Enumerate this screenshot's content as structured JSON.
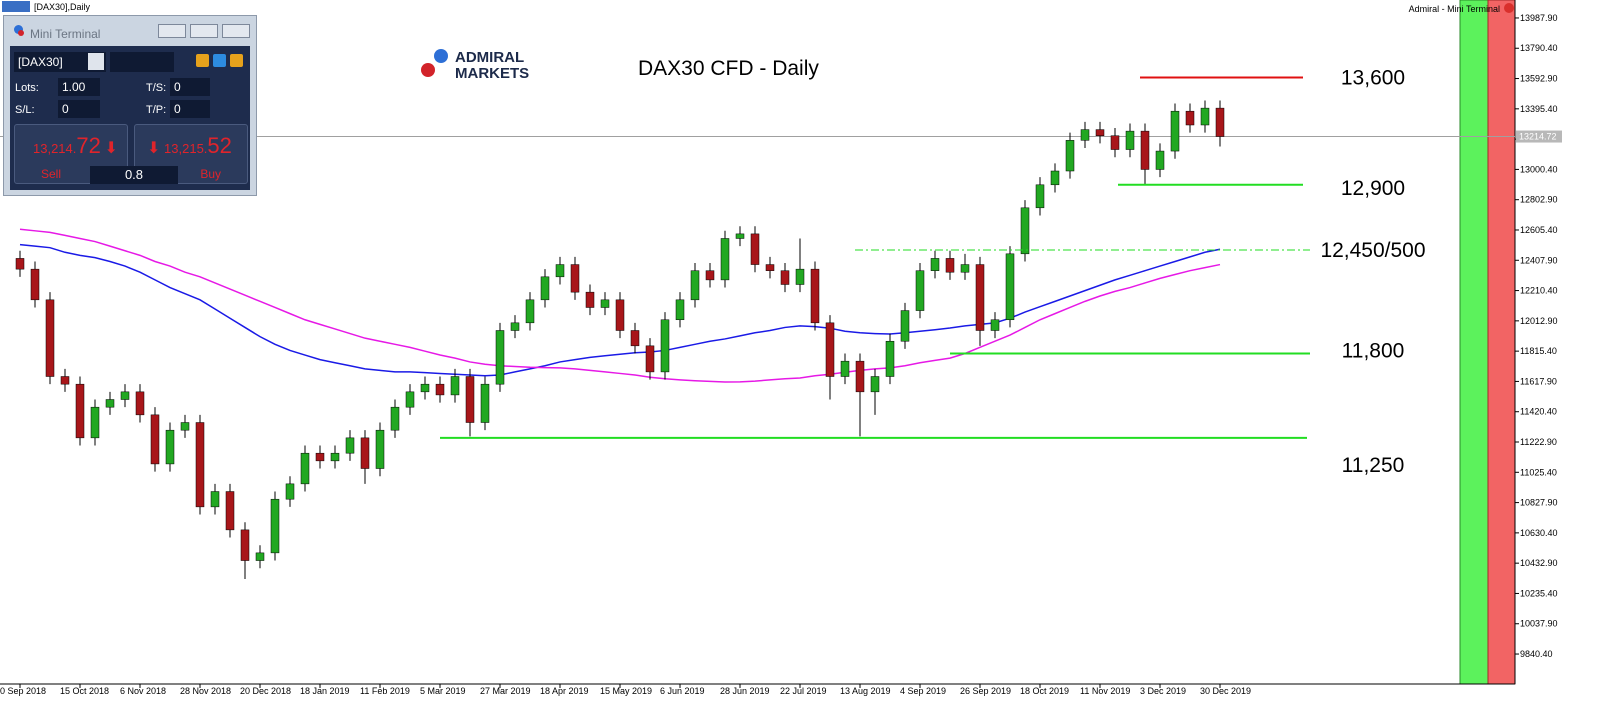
{
  "window_title": "[DAX30],Daily",
  "chart_data": {
    "type": "candlestick",
    "title": "DAX30 CFD - Daily",
    "logo": [
      "ADMIRAL",
      "MARKETS"
    ],
    "indicator_panel": "Admiral - Mini Terminal",
    "categories": [
      "0 Sep 2018",
      null,
      null,
      null,
      "15 Oct 2018",
      null,
      null,
      null,
      "6 Nov 2018",
      null,
      null,
      null,
      "28 Nov 2018",
      null,
      null,
      null,
      "20 Dec 2018",
      null,
      null,
      null,
      "18 Jan 2019",
      null,
      null,
      null,
      "11 Feb 2019",
      null,
      null,
      null,
      "5 Mar 2019",
      null,
      null,
      null,
      "27 Mar 2019",
      null,
      null,
      null,
      "18 Apr 2019",
      null,
      null,
      null,
      "15 May 2019",
      null,
      null,
      null,
      "6 Jun 2019",
      null,
      null,
      null,
      "28 Jun 2019",
      null,
      null,
      null,
      "22 Jul 2019",
      null,
      null,
      null,
      "13 Aug 2019",
      null,
      null,
      null,
      "4 Sep 2019",
      null,
      null,
      null,
      "26 Sep 2019",
      null,
      null,
      null,
      "18 Oct 2019",
      null,
      null,
      null,
      "11 Nov 2019",
      null,
      null,
      null,
      "3 Dec 2019",
      null,
      null,
      null,
      "30 Dec 2019"
    ],
    "open": [
      12420,
      12350,
      12150,
      11650,
      11600,
      11250,
      11450,
      11500,
      11550,
      11400,
      11080,
      11300,
      11350,
      10800,
      10900,
      10650,
      10450,
      10500,
      10850,
      10950,
      11150,
      11100,
      11150,
      11250,
      11050,
      11300,
      11450,
      11550,
      11600,
      11530,
      11650,
      11350,
      11600,
      11950,
      12000,
      12150,
      12300,
      12380,
      12200,
      12100,
      12150,
      11950,
      11850,
      11680,
      12020,
      12150,
      12340,
      12280,
      12550,
      12580,
      12380,
      12340,
      12250,
      12350,
      12000,
      11650,
      11750,
      11550,
      11650,
      11880,
      12080,
      12340,
      12420,
      12330,
      12380,
      11950,
      12020,
      12450,
      12750,
      12900,
      12990,
      13190,
      13260,
      13220,
      13130,
      13250,
      13000,
      13120,
      13380,
      13290,
      13400
    ],
    "high": [
      12470,
      12400,
      12200,
      11700,
      11650,
      11500,
      11550,
      11600,
      11600,
      11450,
      11350,
      11400,
      11400,
      10950,
      10950,
      10700,
      10550,
      10900,
      11000,
      11200,
      11200,
      11200,
      11300,
      11300,
      11350,
      11500,
      11600,
      11650,
      11650,
      11700,
      11700,
      11650,
      12000,
      12050,
      12200,
      12350,
      12430,
      12430,
      12250,
      12200,
      12200,
      12000,
      11900,
      12070,
      12200,
      12390,
      12390,
      12600,
      12630,
      12630,
      12430,
      12390,
      12550,
      12400,
      12050,
      11800,
      11800,
      11700,
      11930,
      12130,
      12390,
      12470,
      12470,
      12450,
      12430,
      12070,
      12500,
      12800,
      12950,
      13040,
      13240,
      13310,
      13310,
      13270,
      13300,
      13300,
      13170,
      13430,
      13430,
      13450,
      13450
    ],
    "low": [
      12300,
      12100,
      11600,
      11550,
      11200,
      11200,
      11400,
      11450,
      11350,
      11030,
      11030,
      11250,
      10750,
      10750,
      10600,
      10330,
      10400,
      10450,
      10800,
      10900,
      11050,
      11050,
      11100,
      10950,
      11000,
      11250,
      11400,
      11500,
      11480,
      11480,
      11260,
      11300,
      11550,
      11900,
      11950,
      12100,
      12250,
      12150,
      12050,
      12050,
      11900,
      11800,
      11630,
      11630,
      11970,
      12100,
      12230,
      12230,
      12500,
      12330,
      12290,
      12200,
      12200,
      11950,
      11500,
      11600,
      11260,
      11400,
      11600,
      11830,
      12030,
      12290,
      12280,
      12280,
      11850,
      11900,
      11970,
      12400,
      12700,
      12850,
      12940,
      13140,
      13170,
      13080,
      13080,
      12900,
      12950,
      13070,
      13240,
      13240,
      13150
    ],
    "close": [
      12350,
      12150,
      11650,
      11600,
      11250,
      11450,
      11500,
      11550,
      11400,
      11080,
      11300,
      11350,
      10800,
      10900,
      10650,
      10450,
      10500,
      10850,
      10950,
      11150,
      11100,
      11150,
      11250,
      11050,
      11300,
      11450,
      11550,
      11600,
      11530,
      11650,
      11350,
      11600,
      11950,
      12000,
      12150,
      12300,
      12380,
      12200,
      12100,
      12150,
      11950,
      11850,
      11680,
      12020,
      12150,
      12340,
      12280,
      12550,
      12580,
      12380,
      12340,
      12250,
      12350,
      12000,
      11650,
      11750,
      11550,
      11650,
      11880,
      12080,
      12340,
      12420,
      12330,
      12380,
      11950,
      12020,
      12450,
      12750,
      12900,
      12990,
      13190,
      13260,
      13220,
      13130,
      13250,
      13000,
      13120,
      13380,
      13290,
      13400,
      13214.72
    ],
    "up_color": "#22a822",
    "down_color": "#a8161a",
    "moving_averages": [
      {
        "color": "#1a1ae6",
        "values": [
          12510,
          12500,
          12490,
          12460,
          12440,
          12425,
          12400,
          12370,
          12330,
          12280,
          12230,
          12190,
          12150,
          12090,
          12030,
          11970,
          11910,
          11860,
          11820,
          11790,
          11760,
          11740,
          11720,
          11700,
          11690,
          11680,
          11680,
          11675,
          11670,
          11665,
          11660,
          11655,
          11660,
          11680,
          11700,
          11720,
          11745,
          11760,
          11775,
          11785,
          11795,
          11805,
          11810,
          11820,
          11840,
          11860,
          11880,
          11895,
          11915,
          11935,
          11950,
          11970,
          11980,
          11975,
          11965,
          11945,
          11935,
          11930,
          11927,
          11935,
          11945,
          11955,
          11966,
          11980,
          11990,
          12000,
          12030,
          12070,
          12105,
          12140,
          12175,
          12210,
          12245,
          12280,
          12310,
          12340,
          12370,
          12400,
          12430,
          12460,
          12480
        ]
      },
      {
        "color": "#e619e6",
        "values": [
          12610,
          12600,
          12590,
          12570,
          12550,
          12530,
          12500,
          12470,
          12440,
          12400,
          12370,
          12330,
          12300,
          12260,
          12220,
          12180,
          12140,
          12100,
          12060,
          12020,
          11990,
          11960,
          11930,
          11900,
          11880,
          11860,
          11840,
          11815,
          11790,
          11770,
          11745,
          11730,
          11720,
          11715,
          11710,
          11708,
          11706,
          11700,
          11690,
          11680,
          11670,
          11660,
          11645,
          11635,
          11628,
          11622,
          11618,
          11614,
          11615,
          11620,
          11628,
          11635,
          11640,
          11655,
          11665,
          11678,
          11690,
          11700,
          11706,
          11720,
          11740,
          11755,
          11770,
          11800,
          11840,
          11880,
          11920,
          11970,
          12020,
          12060,
          12100,
          12140,
          12175,
          12205,
          12230,
          12260,
          12290,
          12315,
          12340,
          12360,
          12380
        ]
      }
    ],
    "levels": [
      {
        "value": 13600,
        "label": "13,600",
        "color": "#e01010",
        "style": "solid"
      },
      {
        "value": 12900,
        "label": "12,900",
        "color": "#22dd22",
        "style": "solid"
      },
      {
        "value": 12475,
        "label": "12,450/500",
        "color": "#22dd22",
        "style": "dashdot"
      },
      {
        "value": 11800,
        "label": "11,800",
        "color": "#22dd22",
        "style": "solid"
      },
      {
        "value": 11250,
        "label": "11,250",
        "color": "#22dd22",
        "style": "solid"
      }
    ],
    "current_price": 13214.72,
    "ylim": [
      9645,
      14105
    ],
    "yticks": [
      {
        "value": 13987.9,
        "label": "13987.90"
      },
      {
        "value": 13790.4,
        "label": "13790.40"
      },
      {
        "value": 13592.9,
        "label": "13592.90"
      },
      {
        "value": 13395.4,
        "label": "13395.40"
      },
      {
        "value": 13198,
        "label": "13198.00"
      },
      {
        "value": 13000.4,
        "label": "13000.40"
      },
      {
        "value": 12802.9,
        "label": "12802.90"
      },
      {
        "value": 12605.4,
        "label": "12605.40"
      },
      {
        "value": 12407.9,
        "label": "12407.90"
      },
      {
        "value": 12210.4,
        "label": "12210.40"
      },
      {
        "value": 12012.9,
        "label": "12012.90"
      },
      {
        "value": 11815.4,
        "label": "11815.40"
      },
      {
        "value": 11617.9,
        "label": "11617.90"
      },
      {
        "value": 11420.4,
        "label": "11420.40"
      },
      {
        "value": 11222.9,
        "label": "11222.90"
      },
      {
        "value": 11025.4,
        "label": "11025.40"
      },
      {
        "value": 10827.9,
        "label": "10827.90"
      },
      {
        "value": 10630.4,
        "label": "10630.40"
      },
      {
        "value": 10432.9,
        "label": "10432.90"
      },
      {
        "value": 10235.4,
        "label": "10235.40"
      },
      {
        "value": 10037.9,
        "label": "10037.90"
      },
      {
        "value": 9840.4,
        "label": "9840.40"
      }
    ]
  },
  "mini_terminal": {
    "title": "Mini Terminal",
    "symbol": "[DAX30]",
    "lots_label": "Lots:",
    "lots": "1.00",
    "ts_label": "T/S:",
    "ts": "0",
    "sl_label": "S/L:",
    "sl": "0",
    "tp_label": "T/P:",
    "tp": "0",
    "sell_price_main": "13,214.",
    "sell_price_pips": "72",
    "buy_price_main": "13,215.",
    "buy_price_pips": "52",
    "sell_label": "Sell",
    "buy_label": "Buy",
    "spread": "0.8"
  }
}
